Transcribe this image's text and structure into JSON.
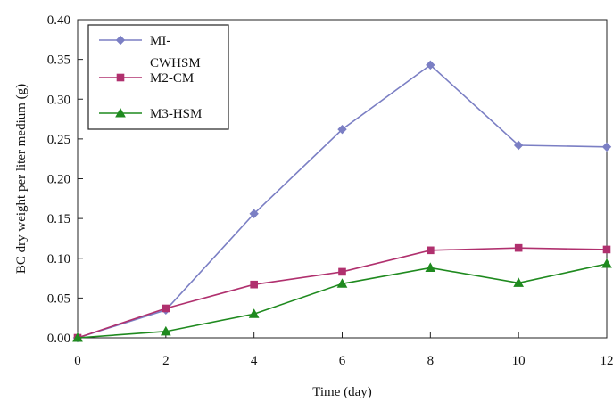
{
  "chart_data": {
    "type": "line",
    "title": "",
    "xlabel": "Time (day)",
    "ylabel": "BC dry weight per liter medium (g)",
    "x": [
      0,
      2,
      4,
      6,
      8,
      10,
      12
    ],
    "xlim": [
      0,
      12
    ],
    "ylim": [
      0,
      0.4
    ],
    "xticks": [
      "0",
      "2",
      "4",
      "6",
      "8",
      "10",
      "12"
    ],
    "yticks": [
      "0.00",
      "0.05",
      "0.10",
      "0.15",
      "0.20",
      "0.25",
      "0.30",
      "0.35",
      "0.40"
    ],
    "grid": false,
    "legend_position": "top-left",
    "series": [
      {
        "name": "MI-CWHSM",
        "label_lines": [
          "MI-",
          "CWHSM"
        ],
        "color": "#7b7fc4",
        "marker": "diamond",
        "values": [
          0.0,
          0.035,
          0.156,
          0.262,
          0.343,
          0.242,
          0.24
        ]
      },
      {
        "name": "M2-CM",
        "label_lines": [
          "M2-CM"
        ],
        "color": "#b0306e",
        "marker": "square",
        "values": [
          0.0,
          0.037,
          0.067,
          0.083,
          0.11,
          0.113,
          0.111
        ]
      },
      {
        "name": "M3-HSM",
        "label_lines": [
          "M3-HSM"
        ],
        "color": "#1f8a1f",
        "marker": "triangle",
        "values": [
          0.0,
          0.008,
          0.03,
          0.068,
          0.088,
          0.069,
          0.093
        ]
      }
    ]
  }
}
